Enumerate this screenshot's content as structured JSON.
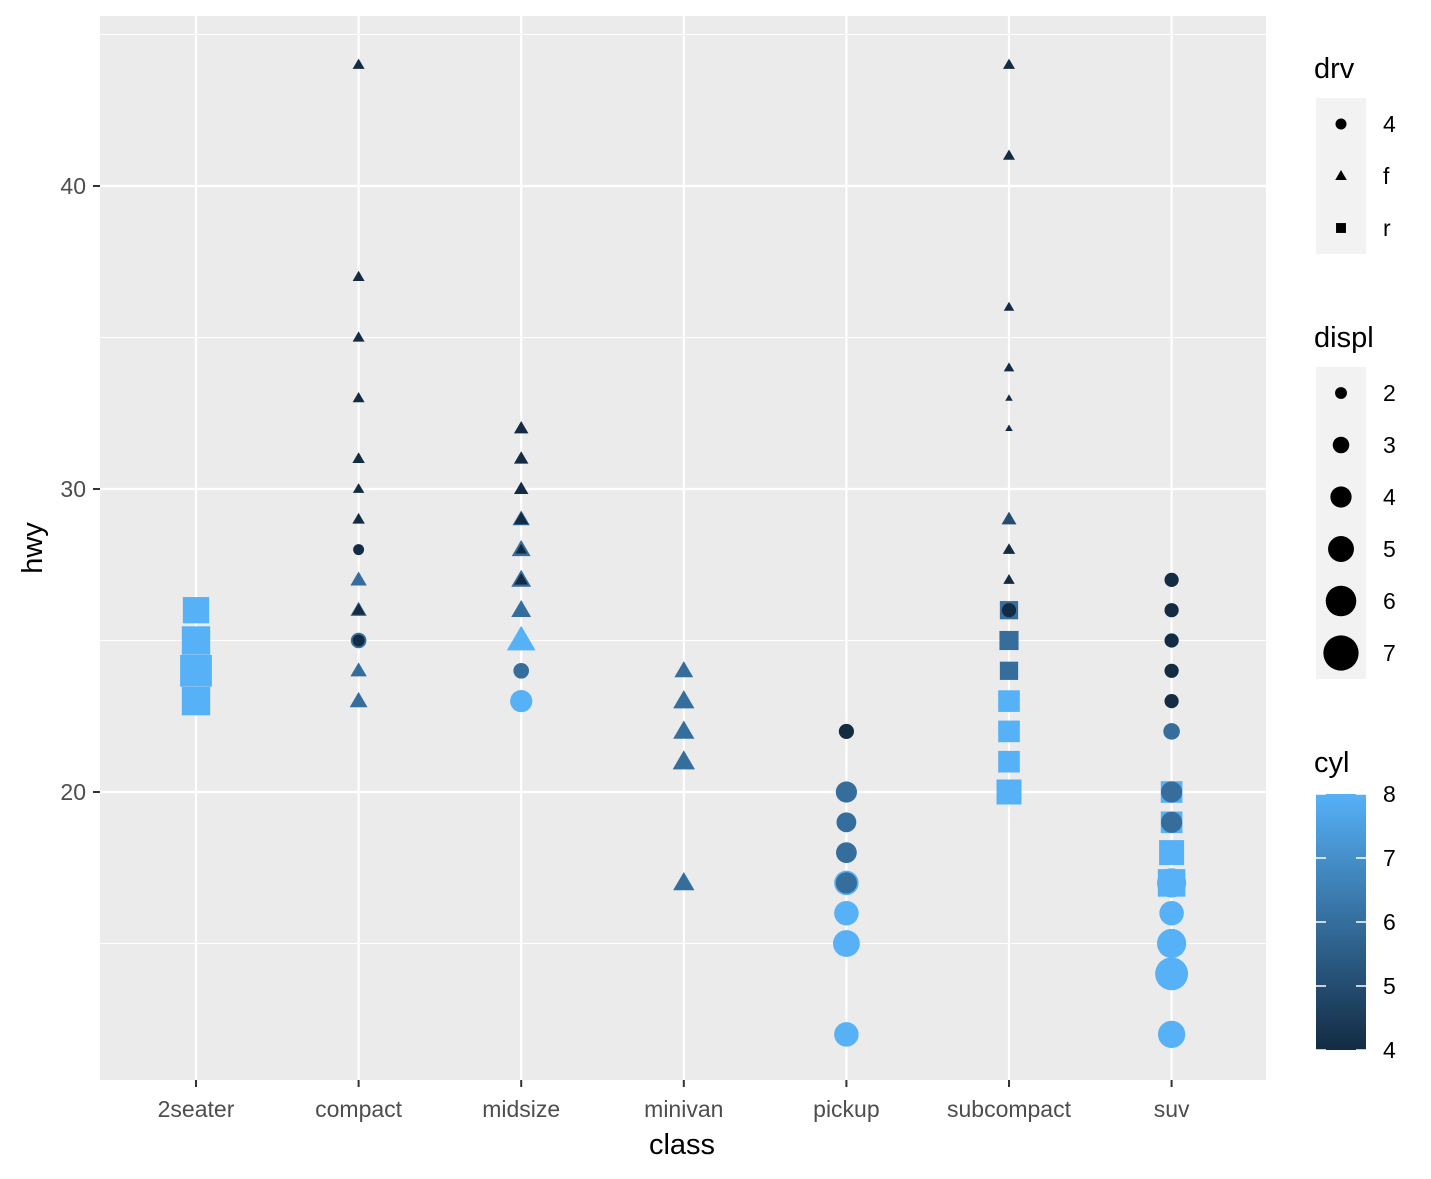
{
  "colors": {
    "panel": "#ebebeb",
    "grid": "#ffffff",
    "cyl_low": "#132b43",
    "cyl_high": "#56b1f7",
    "legend_key": "#f2f2f2"
  },
  "chart_data": {
    "type": "scatter",
    "xlabel": "class",
    "ylabel": "hwy",
    "categories": [
      "2seater",
      "compact",
      "midsize",
      "minivan",
      "pickup",
      "subcompact",
      "suv"
    ],
    "ylim": [
      11,
      46
    ],
    "yticks": [
      "20",
      "30",
      "40"
    ],
    "grid": true,
    "points": [
      {
        "x": "2seater",
        "y": 26,
        "drv": "r",
        "displ": 5.7,
        "cyl": 8
      },
      {
        "x": "2seater",
        "y": 25,
        "drv": "r",
        "displ": 6.2,
        "cyl": 8
      },
      {
        "x": "2seater",
        "y": 24,
        "drv": "r",
        "displ": 7.0,
        "cyl": 8
      },
      {
        "x": "2seater",
        "y": 23,
        "drv": "r",
        "displ": 6.2,
        "cyl": 8
      },
      {
        "x": "compact",
        "y": 44,
        "drv": "f",
        "displ": 1.9,
        "cyl": 4
      },
      {
        "x": "compact",
        "y": 37,
        "drv": "f",
        "displ": 1.9,
        "cyl": 4
      },
      {
        "x": "compact",
        "y": 35,
        "drv": "f",
        "displ": 1.9,
        "cyl": 4
      },
      {
        "x": "compact",
        "y": 33,
        "drv": "f",
        "displ": 1.9,
        "cyl": 4
      },
      {
        "x": "compact",
        "y": 31,
        "drv": "f",
        "displ": 2.0,
        "cyl": 4
      },
      {
        "x": "compact",
        "y": 30,
        "drv": "f",
        "displ": 1.8,
        "cyl": 4
      },
      {
        "x": "compact",
        "y": 29,
        "drv": "f",
        "displ": 2.0,
        "cyl": 4
      },
      {
        "x": "compact",
        "y": 28,
        "drv": "4",
        "displ": 1.8,
        "cyl": 4
      },
      {
        "x": "compact",
        "y": 27,
        "drv": "f",
        "displ": 2.8,
        "cyl": 6
      },
      {
        "x": "compact",
        "y": 26,
        "drv": "f",
        "displ": 2.8,
        "cyl": 6
      },
      {
        "x": "compact",
        "y": 26,
        "drv": "f",
        "displ": 2.2,
        "cyl": 4
      },
      {
        "x": "compact",
        "y": 25,
        "drv": "4",
        "displ": 2.8,
        "cyl": 6
      },
      {
        "x": "compact",
        "y": 25,
        "drv": "4",
        "displ": 2.0,
        "cyl": 4
      },
      {
        "x": "compact",
        "y": 24,
        "drv": "f",
        "displ": 2.8,
        "cyl": 6
      },
      {
        "x": "compact",
        "y": 23,
        "drv": "f",
        "displ": 3.1,
        "cyl": 6
      },
      {
        "x": "midsize",
        "y": 32,
        "drv": "f",
        "displ": 2.4,
        "cyl": 4
      },
      {
        "x": "midsize",
        "y": 31,
        "drv": "f",
        "displ": 2.4,
        "cyl": 4
      },
      {
        "x": "midsize",
        "y": 30,
        "drv": "f",
        "displ": 2.4,
        "cyl": 4
      },
      {
        "x": "midsize",
        "y": 29,
        "drv": "f",
        "displ": 3.0,
        "cyl": 6
      },
      {
        "x": "midsize",
        "y": 29,
        "drv": "f",
        "displ": 2.4,
        "cyl": 4
      },
      {
        "x": "midsize",
        "y": 28,
        "drv": "f",
        "displ": 3.3,
        "cyl": 6
      },
      {
        "x": "midsize",
        "y": 28,
        "drv": "f",
        "displ": 1.8,
        "cyl": 4
      },
      {
        "x": "midsize",
        "y": 27,
        "drv": "f",
        "displ": 3.5,
        "cyl": 6
      },
      {
        "x": "midsize",
        "y": 27,
        "drv": "f",
        "displ": 2.2,
        "cyl": 4
      },
      {
        "x": "midsize",
        "y": 26,
        "drv": "f",
        "displ": 3.5,
        "cyl": 6
      },
      {
        "x": "midsize",
        "y": 25,
        "drv": "f",
        "displ": 5.3,
        "cyl": 8
      },
      {
        "x": "midsize",
        "y": 24,
        "drv": "4",
        "displ": 2.8,
        "cyl": 6
      },
      {
        "x": "midsize",
        "y": 23,
        "drv": "4",
        "displ": 4.2,
        "cyl": 8
      },
      {
        "x": "minivan",
        "y": 24,
        "drv": "f",
        "displ": 3.3,
        "cyl": 6
      },
      {
        "x": "minivan",
        "y": 23,
        "drv": "f",
        "displ": 3.8,
        "cyl": 6
      },
      {
        "x": "minivan",
        "y": 22,
        "drv": "f",
        "displ": 3.8,
        "cyl": 6
      },
      {
        "x": "minivan",
        "y": 21,
        "drv": "f",
        "displ": 4.0,
        "cyl": 6
      },
      {
        "x": "minivan",
        "y": 17,
        "drv": "f",
        "displ": 3.8,
        "cyl": 6
      },
      {
        "x": "pickup",
        "y": 22,
        "drv": "4",
        "displ": 2.7,
        "cyl": 4
      },
      {
        "x": "pickup",
        "y": 20,
        "drv": "4",
        "displ": 4.0,
        "cyl": 6
      },
      {
        "x": "pickup",
        "y": 19,
        "drv": "4",
        "displ": 3.7,
        "cyl": 6
      },
      {
        "x": "pickup",
        "y": 18,
        "drv": "4",
        "displ": 3.9,
        "cyl": 6
      },
      {
        "x": "pickup",
        "y": 17,
        "drv": "4",
        "displ": 4.7,
        "cyl": 8
      },
      {
        "x": "pickup",
        "y": 17,
        "drv": "4",
        "displ": 4.0,
        "cyl": 6
      },
      {
        "x": "pickup",
        "y": 16,
        "drv": "4",
        "displ": 4.7,
        "cyl": 8
      },
      {
        "x": "pickup",
        "y": 15,
        "drv": "4",
        "displ": 5.2,
        "cyl": 8
      },
      {
        "x": "pickup",
        "y": 12,
        "drv": "4",
        "displ": 4.7,
        "cyl": 8
      },
      {
        "x": "subcompact",
        "y": 44,
        "drv": "f",
        "displ": 1.9,
        "cyl": 4
      },
      {
        "x": "subcompact",
        "y": 41,
        "drv": "f",
        "displ": 1.9,
        "cyl": 4
      },
      {
        "x": "subcompact",
        "y": 36,
        "drv": "f",
        "displ": 1.6,
        "cyl": 4
      },
      {
        "x": "subcompact",
        "y": 34,
        "drv": "f",
        "displ": 1.6,
        "cyl": 4
      },
      {
        "x": "subcompact",
        "y": 33,
        "drv": "f",
        "displ": 1.0,
        "cyl": 4
      },
      {
        "x": "subcompact",
        "y": 32,
        "drv": "f",
        "displ": 1.0,
        "cyl": 4
      },
      {
        "x": "subcompact",
        "y": 29,
        "drv": "f",
        "displ": 2.5,
        "cyl": 5
      },
      {
        "x": "subcompact",
        "y": 28,
        "drv": "f",
        "displ": 2.0,
        "cyl": 4
      },
      {
        "x": "subcompact",
        "y": 27,
        "drv": "f",
        "displ": 1.8,
        "cyl": 4
      },
      {
        "x": "subcompact",
        "y": 26,
        "drv": "r",
        "displ": 3.8,
        "cyl": 6
      },
      {
        "x": "subcompact",
        "y": 26,
        "drv": "4",
        "displ": 2.5,
        "cyl": 4
      },
      {
        "x": "subcompact",
        "y": 25,
        "drv": "r",
        "displ": 4.0,
        "cyl": 6
      },
      {
        "x": "subcompact",
        "y": 24,
        "drv": "r",
        "displ": 3.8,
        "cyl": 6
      },
      {
        "x": "subcompact",
        "y": 23,
        "drv": "r",
        "displ": 4.6,
        "cyl": 8
      },
      {
        "x": "subcompact",
        "y": 22,
        "drv": "r",
        "displ": 4.6,
        "cyl": 8
      },
      {
        "x": "subcompact",
        "y": 21,
        "drv": "r",
        "displ": 4.6,
        "cyl": 8
      },
      {
        "x": "subcompact",
        "y": 20,
        "drv": "r",
        "displ": 5.4,
        "cyl": 8
      },
      {
        "x": "suv",
        "y": 27,
        "drv": "4",
        "displ": 2.5,
        "cyl": 4
      },
      {
        "x": "suv",
        "y": 26,
        "drv": "4",
        "displ": 2.5,
        "cyl": 4
      },
      {
        "x": "suv",
        "y": 25,
        "drv": "4",
        "displ": 2.5,
        "cyl": 4
      },
      {
        "x": "suv",
        "y": 24,
        "drv": "4",
        "displ": 2.5,
        "cyl": 4
      },
      {
        "x": "suv",
        "y": 23,
        "drv": "4",
        "displ": 2.5,
        "cyl": 4
      },
      {
        "x": "suv",
        "y": 22,
        "drv": "4",
        "displ": 3.0,
        "cyl": 6
      },
      {
        "x": "suv",
        "y": 20,
        "drv": "r",
        "displ": 4.6,
        "cyl": 8
      },
      {
        "x": "suv",
        "y": 20,
        "drv": "4",
        "displ": 4.0,
        "cyl": 6
      },
      {
        "x": "suv",
        "y": 19,
        "drv": "r",
        "displ": 4.6,
        "cyl": 8
      },
      {
        "x": "suv",
        "y": 19,
        "drv": "4",
        "displ": 4.0,
        "cyl": 6
      },
      {
        "x": "suv",
        "y": 18,
        "drv": "r",
        "displ": 5.4,
        "cyl": 8
      },
      {
        "x": "suv",
        "y": 17,
        "drv": "r",
        "displ": 6.0,
        "cyl": 8
      },
      {
        "x": "suv",
        "y": 17,
        "drv": "4",
        "displ": 5.7,
        "cyl": 8
      },
      {
        "x": "suv",
        "y": 16,
        "drv": "4",
        "displ": 4.7,
        "cyl": 8
      },
      {
        "x": "suv",
        "y": 15,
        "drv": "4",
        "displ": 5.7,
        "cyl": 8
      },
      {
        "x": "suv",
        "y": 14,
        "drv": "4",
        "displ": 6.5,
        "cyl": 8
      },
      {
        "x": "suv",
        "y": 12,
        "drv": "4",
        "displ": 5.3,
        "cyl": 8
      }
    ],
    "legends": {
      "drv": {
        "title": "drv",
        "entries": [
          "4",
          "f",
          "r"
        ]
      },
      "displ": {
        "title": "displ",
        "entries": [
          "2",
          "3",
          "4",
          "5",
          "6",
          "7"
        ]
      },
      "cyl": {
        "title": "cyl",
        "ticks": [
          "8",
          "7",
          "6",
          "5",
          "4"
        ],
        "range": [
          4,
          8
        ]
      }
    }
  }
}
